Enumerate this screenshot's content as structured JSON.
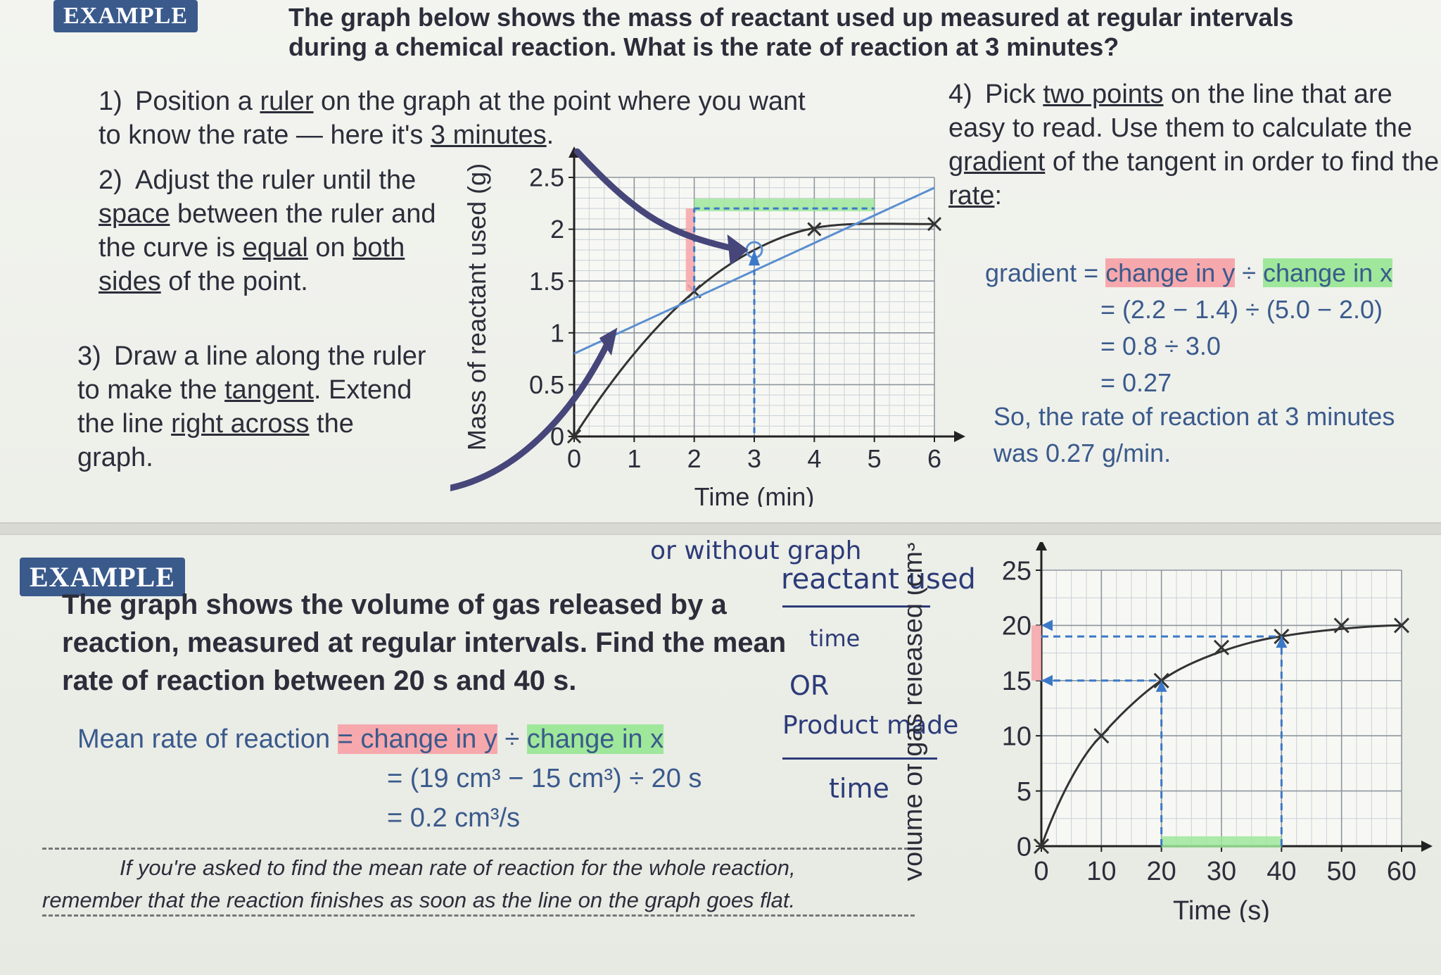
{
  "top": {
    "badge": "EXAMPLE",
    "question": "The graph below shows the mass of reactant used up measured at regular intervals during a chemical reaction. What is the rate of reaction at 3 minutes?",
    "step1_num": "1)",
    "step1_a": "Position a ",
    "step1_ruler": "ruler",
    "step1_b": " on the graph at the point where you want to know the rate — here it's ",
    "step1_3min": "3 minutes",
    "step1_c": ".",
    "step2_num": "2)",
    "step2_a": "Adjust the ruler until the ",
    "step2_space": "space",
    "step2_b": " between the ruler and the curve is ",
    "step2_equal": "equal",
    "step2_c": " on ",
    "step2_both": "both sides",
    "step2_d": " of the point.",
    "step3_num": "3)",
    "step3_a": "Draw a line along the ruler to make the ",
    "step3_tangent": "tangent",
    "step3_b": ". Extend the line ",
    "step3_right": "right across",
    "step3_c": " the graph.",
    "step4_num": "4)",
    "step4_a": "Pick ",
    "step4_two": "two points",
    "step4_b": " on the line that are easy to read. Use them to calculate the ",
    "step4_gradient": "gradient",
    "step4_c": " of the tangent in order to find the ",
    "step4_rate": "rate",
    "step4_d": ":",
    "calc_gradient": "gradient = ",
    "calc_dy": "change in y",
    "calc_div": " ÷ ",
    "calc_dx": "change in x",
    "calc_l2": "= (2.2 − 1.4) ÷ (5.0 − 2.0)",
    "calc_l3": "= 0.8 ÷ 3.0",
    "calc_l4": "= 0.27",
    "conclusion_1": "So, the rate of reaction at 3 minutes",
    "conclusion_2": "was 0.27 g/min."
  },
  "bottom": {
    "badge": "EXAMPLE",
    "question": "The graph shows the volume of gas released by a reaction, measured at regular intervals. Find the mean rate of reaction between 20 s and 40 s.",
    "mean_label": "Mean rate of reaction ",
    "mean_eq": "= change in y",
    "mean_div": " ÷ ",
    "mean_dx": "change in x",
    "mean_l2": "= (19 cm³ − 15 cm³) ÷ 20 s",
    "mean_l3": "= 0.2 cm³/s",
    "note_1": "If you're asked to find the mean rate of reaction for the whole reaction,",
    "note_2": "remember that the reaction finishes as soon as the line on the graph goes flat.",
    "hand_1": "or without graph",
    "hand_2": "reactant used",
    "hand_3": "time",
    "hand_4": "OR",
    "hand_5": "Product made",
    "hand_6": "time"
  },
  "chart_data": [
    {
      "type": "line",
      "xlabel": "Time (min)",
      "ylabel": "Mass of reactant used (g)",
      "xlim": [
        0,
        6
      ],
      "ylim": [
        0,
        2.5
      ],
      "x_ticks": [
        "0",
        "1",
        "2",
        "3",
        "4",
        "5",
        "6"
      ],
      "y_ticks": [
        "0",
        "0.5",
        "1",
        "1.5",
        "2",
        "2.5"
      ],
      "x": [
        0,
        2,
        4,
        6
      ],
      "values": [
        0,
        1.4,
        2.0,
        2.05
      ],
      "tangent": {
        "x": [
          0,
          6
        ],
        "y": [
          0.8,
          2.4
        ]
      },
      "tangent_point": {
        "x": 3,
        "y": 1.8
      },
      "readings": {
        "x": [
          2,
          5
        ],
        "y": [
          1.4,
          2.2
        ]
      },
      "grid": true
    },
    {
      "type": "line",
      "xlabel": "Time (s)",
      "ylabel": "Volume of gas released (cm³)",
      "xlim": [
        0,
        60
      ],
      "ylim": [
        0,
        25
      ],
      "x_ticks": [
        "0",
        "10",
        "20",
        "30",
        "40",
        "50",
        "60"
      ],
      "y_ticks": [
        "0",
        "5",
        "10",
        "15",
        "20",
        "25"
      ],
      "x": [
        0,
        10,
        20,
        30,
        40,
        50,
        60
      ],
      "values": [
        0,
        10,
        15,
        18,
        19,
        20,
        20
      ],
      "readings": {
        "x": [
          20,
          40
        ],
        "y": [
          15,
          19
        ]
      },
      "grid": true
    }
  ]
}
